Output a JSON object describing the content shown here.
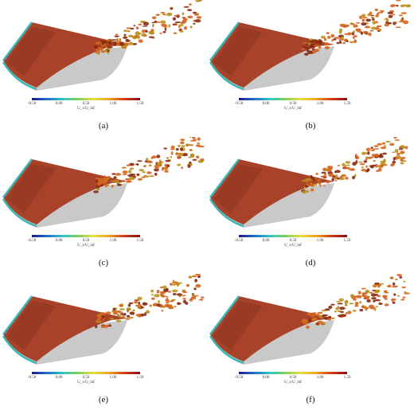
{
  "colorbar": {
    "label": "U_x/U_inf",
    "ticks": [
      "-0.50",
      "0.00",
      "0.50",
      "1.00",
      "1.50"
    ],
    "gradient": [
      "#1a1a8c",
      "#1f6fd0",
      "#2ec4c4",
      "#7bd05a",
      "#e8e040",
      "#f0a020",
      "#d03a1a",
      "#8a1010"
    ]
  },
  "panels": [
    {
      "caption": "(a)"
    },
    {
      "caption": "(b)"
    },
    {
      "caption": "(c)"
    },
    {
      "caption": "(d)"
    },
    {
      "caption": "(e)"
    },
    {
      "caption": "(f)"
    }
  ],
  "colors": {
    "surface": "#a8432a",
    "surface_dark": "#7d2c1b",
    "underside": "#c9c9c9",
    "leading_edge": "#39b7b4",
    "vortex_a": "#d5651e",
    "vortex_b": "#b9911b",
    "vortex_c": "#8a2a12"
  }
}
